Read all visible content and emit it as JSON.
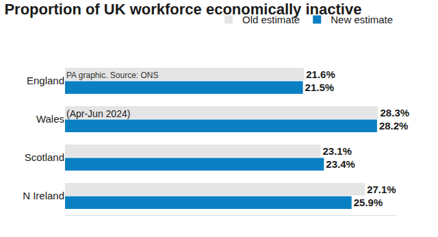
{
  "chart_data": {
    "type": "bar",
    "title": "Proportion of UK workforce economically inactive",
    "subtitle": "(Apr-Jun 2024)",
    "annotations": [
      "PA graphic. Source: ONS"
    ],
    "orientation": "horizontal",
    "categories": [
      "England",
      "Wales",
      "Scotland",
      "N Ireland"
    ],
    "series": [
      {
        "name": "Old estimate",
        "color": "#e5e5e5",
        "values": [
          21.6,
          28.3,
          23.1,
          27.1
        ],
        "value_labels": [
          "21.6%",
          "28.3%",
          "23.1%",
          "27.1%"
        ]
      },
      {
        "name": "New estimate",
        "color": "#0a7fc2",
        "values": [
          21.5,
          28.2,
          23.4,
          25.9
        ],
        "value_labels": [
          "21.5%",
          "28.2%",
          "23.4%",
          "25.9%"
        ]
      }
    ],
    "xlim": [
      0,
      30
    ],
    "data_labels": true,
    "tick_labels": "y",
    "grid": false,
    "legend": "top-right"
  }
}
